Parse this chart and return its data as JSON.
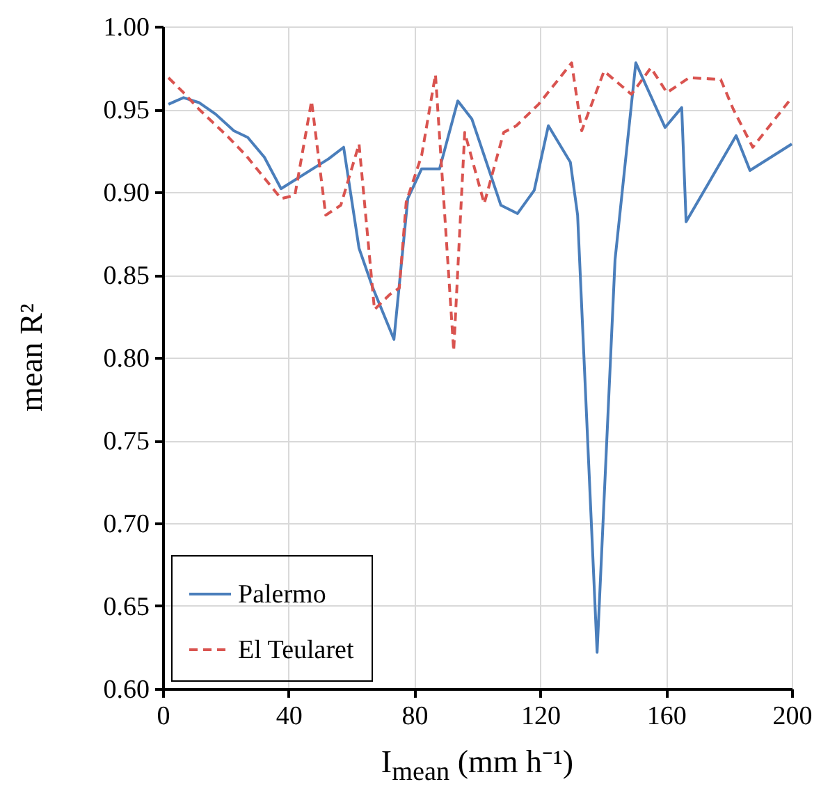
{
  "chart_data": {
    "type": "line",
    "xlabel": "I$_{mean}$ (mm h⁻¹)",
    "ylabel": "mean R²",
    "xlim": [
      0,
      200
    ],
    "xticks": [
      0,
      40,
      80,
      120,
      160,
      200
    ],
    "ylim": [
      0.6,
      1.0
    ],
    "yticks": [
      {
        "value": 0.6,
        "label": "0.60"
      },
      {
        "value": 0.65,
        "label": "0.65"
      },
      {
        "value": 0.7,
        "label": "0.70"
      },
      {
        "value": 0.75,
        "label": "0.75"
      },
      {
        "value": 0.8,
        "label": "0.80"
      },
      {
        "value": 0.85,
        "label": "0.85"
      },
      {
        "value": 0.9,
        "label": "0.90"
      },
      {
        "value": 0.95,
        "label": "0.95"
      },
      {
        "value": 1.0,
        "label": "1.00"
      }
    ],
    "grid": true,
    "legend": "bottom left",
    "marker": "none",
    "series": [
      {
        "name": "Palermo",
        "color": "#4a7ebb",
        "line_style": "solid",
        "x": [
          1.8,
          6.6,
          11.5,
          16.8,
          22.6,
          27,
          32.3,
          37.6,
          52.7,
          57.5,
          62.4,
          66.8,
          73.5,
          77.9,
          82.3,
          88,
          93.8,
          98.3,
          107.5,
          112.8,
          118.1,
          122.6,
          129.6,
          131.9,
          138.1,
          143.8,
          150.4,
          159.7,
          165,
          166.4,
          182.3,
          186.7,
          200
        ],
        "values": [
          0.953,
          0.957,
          0.954,
          0.947,
          0.937,
          0.933,
          0.921,
          0.902,
          0.92,
          0.927,
          0.866,
          0.842,
          0.811,
          0.896,
          0.914,
          0.914,
          0.955,
          0.944,
          0.892,
          0.887,
          0.901,
          0.94,
          0.918,
          0.886,
          0.622,
          0.859,
          0.978,
          0.939,
          0.951,
          0.882,
          0.934,
          0.913,
          0.929
        ]
      },
      {
        "name": "El Teularet",
        "color": "#d9534f",
        "line_style": "dashed",
        "x": [
          1.8,
          6.6,
          11.5,
          20.4,
          26.5,
          37.6,
          42,
          47.3,
          51.8,
          56.6,
          62.4,
          67.3,
          72.1,
          75.2,
          77.4,
          82.3,
          86.7,
          92.5,
          96,
          102.2,
          108.4,
          112.4,
          119.5,
          130,
          133.2,
          140.3,
          149,
          155.2,
          160.3,
          167.3,
          177.4,
          181.4,
          187.6,
          200
        ],
        "values": [
          0.969,
          0.96,
          0.95,
          0.934,
          0.922,
          0.896,
          0.898,
          0.955,
          0.886,
          0.892,
          0.929,
          0.829,
          0.838,
          0.842,
          0.894,
          0.922,
          0.971,
          0.804,
          0.936,
          0.893,
          0.936,
          0.94,
          0.953,
          0.978,
          0.937,
          0.973,
          0.959,
          0.975,
          0.96,
          0.969,
          0.968,
          0.95,
          0.927,
          0.957
        ]
      }
    ]
  }
}
